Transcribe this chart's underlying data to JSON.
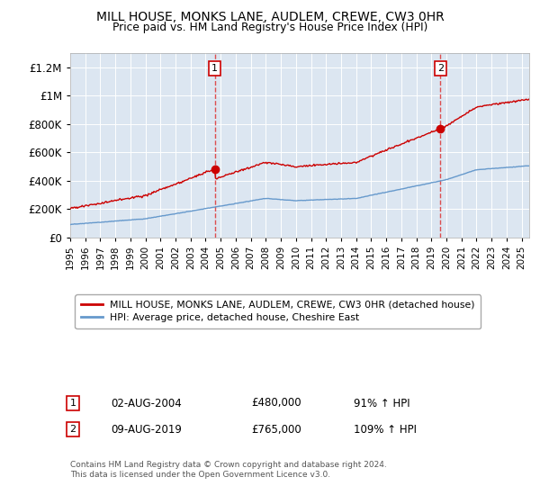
{
  "title": "MILL HOUSE, MONKS LANE, AUDLEM, CREWE, CW3 0HR",
  "subtitle": "Price paid vs. HM Land Registry's House Price Index (HPI)",
  "legend_line1": "MILL HOUSE, MONKS LANE, AUDLEM, CREWE, CW3 0HR (detached house)",
  "legend_line2": "HPI: Average price, detached house, Cheshire East",
  "annotation1_date": "02-AUG-2004",
  "annotation1_price": "£480,000",
  "annotation1_hpi": "91% ↑ HPI",
  "annotation2_date": "09-AUG-2019",
  "annotation2_price": "£765,000",
  "annotation2_hpi": "109% ↑ HPI",
  "footer": "Contains HM Land Registry data © Crown copyright and database right 2024.\nThis data is licensed under the Open Government Licence v3.0.",
  "red_color": "#cc0000",
  "blue_color": "#6699cc",
  "dashed_red": "#dd3333",
  "background_color": "#dce6f1",
  "ylim": [
    0,
    1300000
  ],
  "yticks": [
    0,
    200000,
    400000,
    600000,
    800000,
    1000000,
    1200000
  ],
  "ytick_labels": [
    "£0",
    "£200K",
    "£400K",
    "£600K",
    "£800K",
    "£1M",
    "£1.2M"
  ],
  "sale1_x": 2004.6,
  "sale1_y": 480000,
  "sale2_x": 2019.6,
  "sale2_y": 765000,
  "xmin": 1995,
  "xmax": 2025.5
}
